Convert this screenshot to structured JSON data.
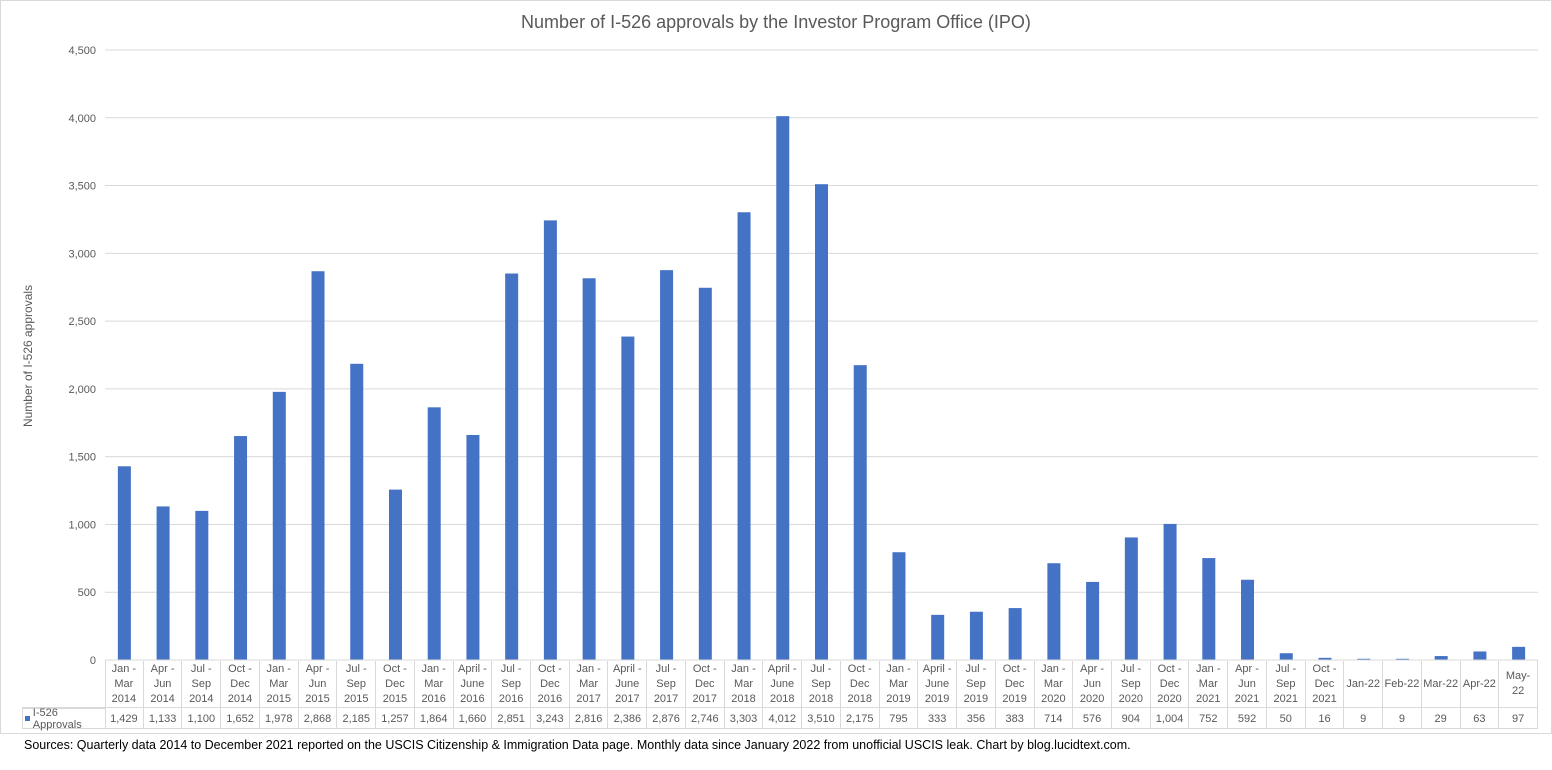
{
  "chart_data": {
    "type": "bar",
    "title": "Number of I-526 approvals by the Investor Program Office (IPO)",
    "xlabel": "",
    "ylabel": "Number of I-526 approvals",
    "ylim": [
      0,
      4500
    ],
    "yticks": [
      0,
      500,
      1000,
      1500,
      2000,
      2500,
      3000,
      3500,
      4000,
      4500
    ],
    "ytick_labels": [
      "0",
      "500",
      "1,000",
      "1,500",
      "2,000",
      "2,500",
      "3,000",
      "3,500",
      "4,000",
      "4,500"
    ],
    "grid": true,
    "legend": "data-table-bottom",
    "bar_color": "#4472c4",
    "categories": [
      "Jan -\nMar\n2014",
      "Apr -\nJun\n2014",
      "Jul -\nSep\n2014",
      "Oct -\nDec\n2014",
      "Jan -\nMar\n2015",
      "Apr -\nJun\n2015",
      "Jul -\nSep\n2015",
      "Oct -\nDec\n2015",
      "Jan -\nMar\n2016",
      "April -\nJune\n2016",
      "Jul -\nSep\n2016",
      "Oct -\nDec\n2016",
      "Jan -\nMar\n2017",
      "April -\nJune\n2017",
      "Jul -\nSep\n2017",
      "Oct -\nDec\n2017",
      "Jan -\nMar\n2018",
      "April -\nJune\n2018",
      "Jul -\nSep\n2018",
      "Oct -\nDec\n2018",
      "Jan -\nMar\n2019",
      "April -\nJune\n2019",
      "Jul -\nSep\n2019",
      "Oct -\nDec\n2019",
      "Jan -\nMar\n2020",
      "Apr -\nJun\n2020",
      "Jul -\nSep\n2020",
      "Oct -\nDec\n2020",
      "Jan -\nMar\n2021",
      "Apr -\nJun\n2021",
      "Jul -\nSep\n2021",
      "Oct -\nDec\n2021",
      "Jan-22",
      "Feb-22",
      "Mar-22",
      "Apr-22",
      "May-\n22"
    ],
    "series": [
      {
        "name": "I-526 Approvals",
        "values": [
          1429,
          1133,
          1100,
          1652,
          1978,
          2868,
          2185,
          1257,
          1864,
          1660,
          2851,
          3243,
          2816,
          2386,
          2876,
          2746,
          3303,
          4012,
          3510,
          2175,
          795,
          333,
          356,
          383,
          714,
          576,
          904,
          1004,
          752,
          592,
          50,
          16,
          9,
          9,
          29,
          63,
          97
        ],
        "labels": [
          "1,429",
          "1,133",
          "1,100",
          "1,652",
          "1,978",
          "2,868",
          "2,185",
          "1,257",
          "1,864",
          "1,660",
          "2,851",
          "3,243",
          "2,816",
          "2,386",
          "2,876",
          "2,746",
          "3,303",
          "4,012",
          "3,510",
          "2,175",
          "795",
          "333",
          "356",
          "383",
          "714",
          "576",
          "904",
          "1,004",
          "752",
          "592",
          "50",
          "16",
          "9",
          "9",
          "29",
          "63",
          "97"
        ]
      }
    ]
  },
  "source": "Sources: Quarterly data 2014 to December 2021 reported on the USCIS Citizenship & Immigration Data page. Monthly data since January 2022 from unofficial USCIS leak. Chart by blog.lucidtext.com."
}
